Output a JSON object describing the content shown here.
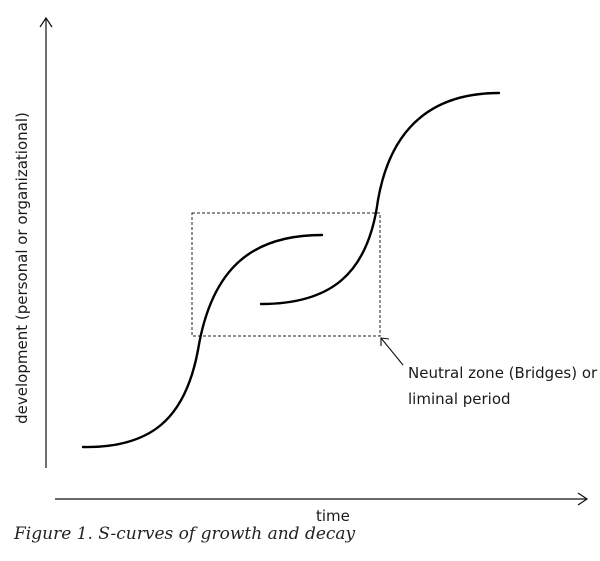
{
  "axes": {
    "x_label": "time",
    "y_label": "development (personal or organizational)"
  },
  "annotation": {
    "line1": "Neutral zone (Bridges) or",
    "line2": "liminal period"
  },
  "caption": "Figure 1. S-curves of growth and decay"
}
